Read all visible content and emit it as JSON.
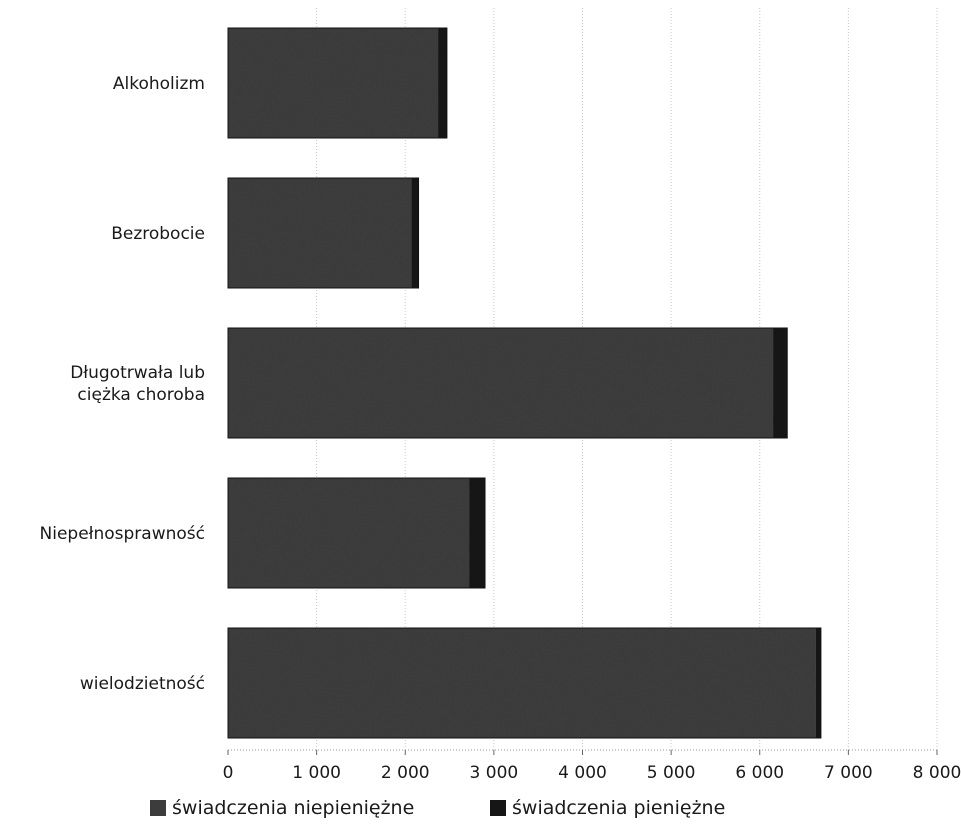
{
  "chart_data": {
    "type": "bar",
    "orientation": "horizontal",
    "stacked": true,
    "categories": [
      [
        "Alkoholizm"
      ],
      [
        "Bezrobocie"
      ],
      [
        "Długotrwała lub",
        "ciężka choroba"
      ],
      [
        "Niepełnosprawność"
      ],
      [
        "wielodzietność"
      ]
    ],
    "series": [
      {
        "name": "świadczenia niepieniężne",
        "color": "#3e3e3e",
        "values": [
          2370,
          2070,
          6150,
          2720,
          6630
        ]
      },
      {
        "name": "świadczenia pieniężne",
        "color": "#141414",
        "values": [
          100,
          80,
          160,
          180,
          60
        ]
      }
    ],
    "xlim": [
      0,
      8000
    ],
    "xticks": [
      0,
      1000,
      2000,
      3000,
      4000,
      5000,
      6000,
      7000,
      8000
    ],
    "xtick_labels": [
      "0",
      "1 000",
      "2 000",
      "3 000",
      "4 000",
      "5 000",
      "6 000",
      "7 000",
      "8 000"
    ],
    "grid": true,
    "legend_position": "bottom",
    "title": "",
    "xlabel": "",
    "ylabel": ""
  }
}
